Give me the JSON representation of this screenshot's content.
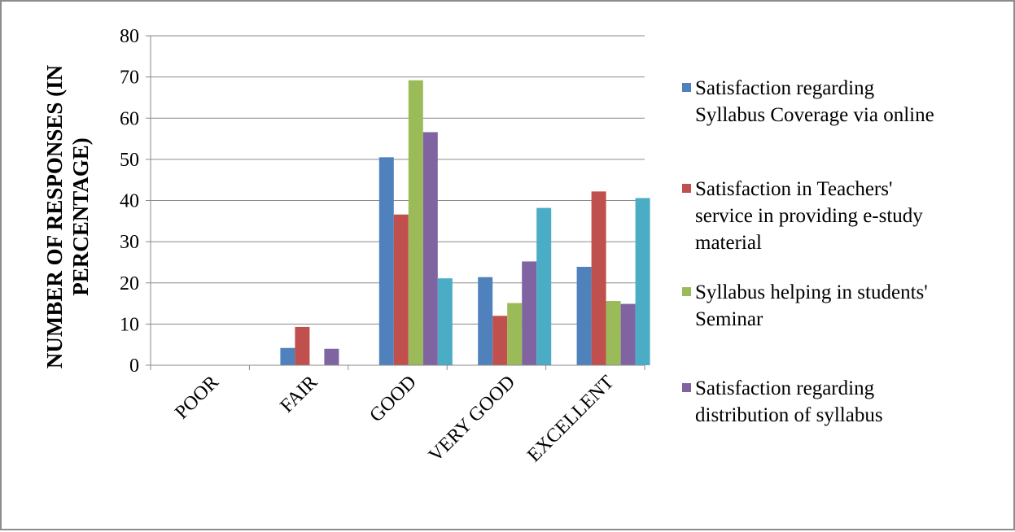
{
  "chart_data": {
    "type": "bar",
    "title": "",
    "xlabel": "",
    "ylabel": "NUMBER OF RESPONSES (IN PERCENTAGE)",
    "ylabel_lines": [
      "NUMBER OF RESPONSES (IN",
      "PERCENTAGE)"
    ],
    "ylim": [
      0,
      80
    ],
    "yticks": [
      0,
      10,
      20,
      30,
      40,
      50,
      60,
      70,
      80
    ],
    "grid": true,
    "legend_position": "right",
    "categories": [
      "POOR",
      "FAIR",
      "GOOD",
      "VERY GOOD",
      "EXCELLENT"
    ],
    "series": [
      {
        "name": "Satisfaction regarding Syllabus Coverage via online",
        "legend_lines": [
          "Satisfaction regarding",
          "Syllabus Coverage via online"
        ],
        "color": "#4F81BD",
        "values": [
          0,
          4.2,
          50.5,
          21.4,
          23.9
        ]
      },
      {
        "name": "Satisfaction in Teachers' service in providing e-study material",
        "legend_lines": [
          "Satisfaction in Teachers'",
          "service in providing e-study",
          "material"
        ],
        "color": "#C0504D",
        "values": [
          0,
          9.3,
          36.6,
          12,
          42.2
        ]
      },
      {
        "name": "Syllabus helping in students' Seminar",
        "legend_lines": [
          "Syllabus helping in students'",
          "Seminar"
        ],
        "color": "#9BBB59",
        "values": [
          0,
          0,
          69.2,
          15.1,
          15.6
        ]
      },
      {
        "name": "Satisfaction regarding distribution of syllabus",
        "legend_lines": [
          "Satisfaction regarding",
          "distribution of syllabus"
        ],
        "color": "#8064A2",
        "values": [
          0,
          4,
          56.6,
          25.2,
          14.9
        ]
      },
      {
        "name": "",
        "legend_lines": [],
        "color": "#4BACC6",
        "values": [
          0,
          0,
          21.1,
          38.2,
          40.6
        ]
      }
    ]
  }
}
